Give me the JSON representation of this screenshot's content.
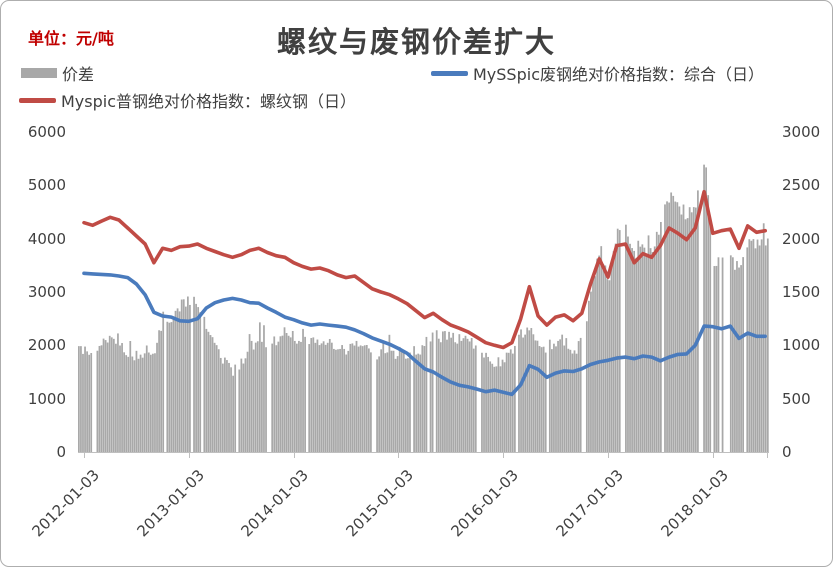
{
  "header": {
    "unit_label": "单位：元/吨",
    "title": "螺纹与废钢价差扩大"
  },
  "legend": [
    {
      "label": "价差",
      "type": "bar",
      "color": "#A8A8A8"
    },
    {
      "label": "MySSpic废钢绝对价格指数：综合（日）",
      "type": "line",
      "color": "#4A7BBD"
    },
    {
      "label": "Myspic普钢绝对价格指数：螺纹钢（日）",
      "type": "line",
      "color": "#C04B45"
    }
  ],
  "colors": {
    "bar": "#A8A8A8",
    "scrap_line": "#4A7BBD",
    "rebar_line": "#C04B45",
    "axis_text": "#404040",
    "axis_line": "#BFBFBF",
    "unit_text": "#C00000"
  },
  "chart_data": {
    "type": "bar",
    "subtype": "combo-bar-and-lines",
    "title": "螺纹与废钢价差扩大",
    "x_start": "2012-01",
    "x_end": "2018-07",
    "sampling": "monthly (values read from daily chart)",
    "x_tick_labels": [
      "2012-01-03",
      "2013-01-03",
      "2014-01-03",
      "2015-01-03",
      "2016-01-03",
      "2017-01-03",
      "2018-01-03"
    ],
    "left_axis": {
      "min": 0,
      "max": 6000,
      "step": 1000,
      "ticks": [
        6000,
        5000,
        4000,
        3000,
        2000,
        1000,
        0
      ]
    },
    "right_axis": {
      "min": 0,
      "max": 3000,
      "step": 500,
      "ticks": [
        3000,
        2500,
        2000,
        1500,
        1000,
        500,
        0
      ]
    },
    "grid": "off",
    "legend_position": "top",
    "series": [
      {
        "name": "价差",
        "type": "bar",
        "axis": "right",
        "color": "#A8A8A8",
        "monthly_values": [
          950,
          910,
          1000,
          1080,
          1050,
          930,
          900,
          950,
          930,
          1270,
          1250,
          1370,
          1410,
          1400,
          1120,
          980,
          850,
          770,
          850,
          980,
          1030,
          1040,
          1060,
          1120,
          1070,
          1060,
          1050,
          1050,
          1020,
          960,
          930,
          1010,
          960,
          920,
          920,
          930,
          930,
          930,
          950,
          960,
          1100,
          1080,
          1070,
          1070,
          1030,
          970,
          920,
          840,
          840,
          970,
          1100,
          1200,
          1000,
          980,
          1050,
          1050,
          950,
          1040,
          1510,
          1930,
          1560,
          2110,
          2120,
          1800,
          1920,
          1870,
          2160,
          2420,
          2270,
          2200,
          2350,
          2780,
          1750,
          1840,
          1820,
          1690,
          2010,
          1950,
          1980
        ]
      },
      {
        "name": "MySSpic废钢绝对价格指数：综合（日）",
        "type": "line",
        "axis": "left",
        "color": "#4A7BBD",
        "monthly_values": [
          3350,
          3340,
          3330,
          3320,
          3300,
          3270,
          3150,
          2950,
          2620,
          2550,
          2530,
          2460,
          2450,
          2500,
          2700,
          2800,
          2850,
          2880,
          2850,
          2800,
          2790,
          2700,
          2620,
          2530,
          2480,
          2420,
          2380,
          2400,
          2380,
          2360,
          2340,
          2290,
          2220,
          2140,
          2080,
          2020,
          1940,
          1850,
          1700,
          1560,
          1500,
          1400,
          1310,
          1250,
          1220,
          1180,
          1130,
          1160,
          1120,
          1080,
          1260,
          1620,
          1550,
          1400,
          1480,
          1520,
          1510,
          1560,
          1640,
          1690,
          1720,
          1760,
          1780,
          1750,
          1800,
          1780,
          1710,
          1780,
          1830,
          1840,
          2000,
          2360,
          2350,
          2310,
          2360,
          2130,
          2230,
          2170,
          2170
        ]
      },
      {
        "name": "Myspic普钢绝对价格指数：螺纹钢（日）",
        "type": "line",
        "axis": "left",
        "color": "#C04B45",
        "monthly_values": [
          4300,
          4250,
          4330,
          4400,
          4350,
          4200,
          4050,
          3900,
          3550,
          3820,
          3780,
          3850,
          3860,
          3900,
          3820,
          3760,
          3700,
          3650,
          3700,
          3780,
          3820,
          3740,
          3680,
          3650,
          3550,
          3480,
          3430,
          3450,
          3400,
          3320,
          3270,
          3300,
          3180,
          3060,
          3000,
          2950,
          2870,
          2780,
          2650,
          2520,
          2600,
          2480,
          2380,
          2320,
          2250,
          2150,
          2050,
          2000,
          1960,
          2050,
          2500,
          3100,
          2550,
          2380,
          2530,
          2570,
          2460,
          2600,
          3150,
          3620,
          3280,
          3870,
          3900,
          3550,
          3720,
          3650,
          3870,
          4200,
          4100,
          3980,
          4200,
          4880,
          4100,
          4150,
          4180,
          3820,
          4240,
          4120,
          4150
        ]
      }
    ],
    "bar_gaps_years_from_start": [
      0.09,
      0.77,
      1.12,
      1.76,
      2.12,
      2.76,
      3.12,
      3.34,
      3.76,
      4.12,
      4.42,
      4.76,
      5.13,
      5.52,
      5.88,
      5.99,
      6.13,
      6.3
    ]
  }
}
